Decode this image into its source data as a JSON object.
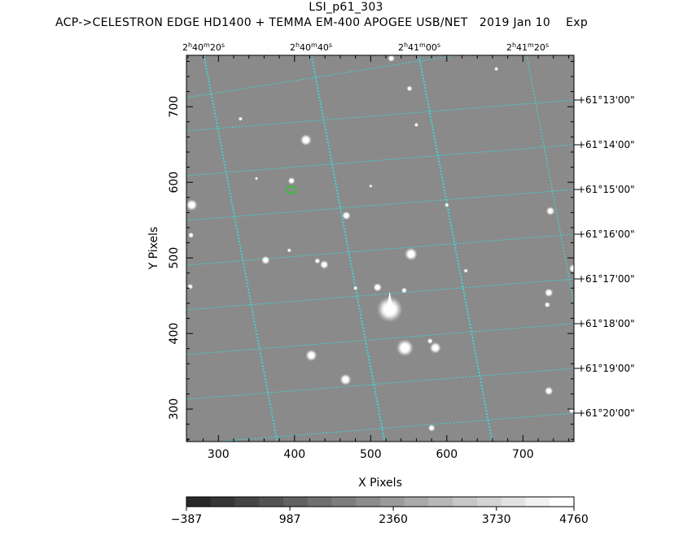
{
  "header": {
    "title": "LSI_p61_303",
    "subtitle": "ACP->CELESTRON EDGE HD1400 + TEMMA EM-400 APOGEE USB/NET   2019 Jan 10    Exp"
  },
  "chart_data": {
    "type": "heatmap",
    "title": "LSI_p61_303",
    "xlabel": "X Pixels",
    "ylabel": "Y Pixels",
    "xlim": [
      258,
      767
    ],
    "ylim": [
      257,
      768
    ],
    "x_ticks": [
      300,
      400,
      500,
      600,
      700
    ],
    "y_ticks": [
      300,
      400,
      500,
      600,
      700
    ],
    "ra_ticks": [
      {
        "h": "2",
        "m": "40",
        "s": "20"
      },
      {
        "h": "2",
        "m": "40",
        "s": "40"
      },
      {
        "h": "2",
        "m": "41",
        "s": "00"
      },
      {
        "h": "2",
        "m": "41",
        "s": "20"
      }
    ],
    "dec_ticks": [
      "+61°13'00\"",
      "+61°14'00\"",
      "+61°15'00\"",
      "+61°16'00\"",
      "+61°17'00\"",
      "+61°18'00\"",
      "+61°19'00\"",
      "+61°20'00\""
    ],
    "colorbar": {
      "min": -387,
      "max": 4760,
      "tick_labels": [
        "−387",
        "987",
        "2360",
        "3730",
        "4760"
      ],
      "tick_values": [
        -387,
        987,
        2360,
        3730,
        4760
      ],
      "steps": 16
    },
    "grid": "on",
    "grid_color": "#3fd6d6",
    "background_color": "#8a8a8a",
    "marker": {
      "x": 396,
      "y": 590,
      "color": "#22cc22"
    },
    "stars": [
      {
        "x": 265,
        "y": 570,
        "r": 4
      },
      {
        "x": 264,
        "y": 530,
        "r": 2
      },
      {
        "x": 263,
        "y": 462,
        "r": 2
      },
      {
        "x": 415,
        "y": 656,
        "r": 4
      },
      {
        "x": 396,
        "y": 602,
        "r": 2.5
      },
      {
        "x": 329,
        "y": 684,
        "r": 1.5
      },
      {
        "x": 468,
        "y": 556,
        "r": 3
      },
      {
        "x": 500,
        "y": 595,
        "r": 1.2
      },
      {
        "x": 553,
        "y": 505,
        "r": 4.5
      },
      {
        "x": 362,
        "y": 497,
        "r": 3
      },
      {
        "x": 393,
        "y": 510,
        "r": 1.5
      },
      {
        "x": 430,
        "y": 496,
        "r": 2
      },
      {
        "x": 439,
        "y": 491,
        "r": 3
      },
      {
        "x": 509,
        "y": 461,
        "r": 3
      },
      {
        "x": 544,
        "y": 457,
        "r": 2
      },
      {
        "x": 525,
        "y": 432,
        "r": 9
      },
      {
        "x": 545,
        "y": 381,
        "r": 6
      },
      {
        "x": 585,
        "y": 381,
        "r": 4
      },
      {
        "x": 578,
        "y": 390,
        "r": 2
      },
      {
        "x": 422,
        "y": 371,
        "r": 4
      },
      {
        "x": 467,
        "y": 339,
        "r": 4
      },
      {
        "x": 580,
        "y": 275,
        "r": 2.5
      },
      {
        "x": 551,
        "y": 724,
        "r": 2
      },
      {
        "x": 527,
        "y": 764,
        "r": 2.5
      },
      {
        "x": 560,
        "y": 676,
        "r": 1.5
      },
      {
        "x": 665,
        "y": 750,
        "r": 1.5
      },
      {
        "x": 736,
        "y": 562,
        "r": 3
      },
      {
        "x": 734,
        "y": 454,
        "r": 3
      },
      {
        "x": 766,
        "y": 486,
        "r": 3
      },
      {
        "x": 732,
        "y": 438,
        "r": 2
      },
      {
        "x": 734,
        "y": 324,
        "r": 3
      },
      {
        "x": 764,
        "y": 298,
        "r": 2
      },
      {
        "x": 600,
        "y": 570,
        "r": 1.5
      },
      {
        "x": 625,
        "y": 483,
        "r": 1.5
      },
      {
        "x": 350,
        "y": 605,
        "r": 1.2
      },
      {
        "x": 480,
        "y": 460,
        "r": 1.5
      }
    ]
  }
}
